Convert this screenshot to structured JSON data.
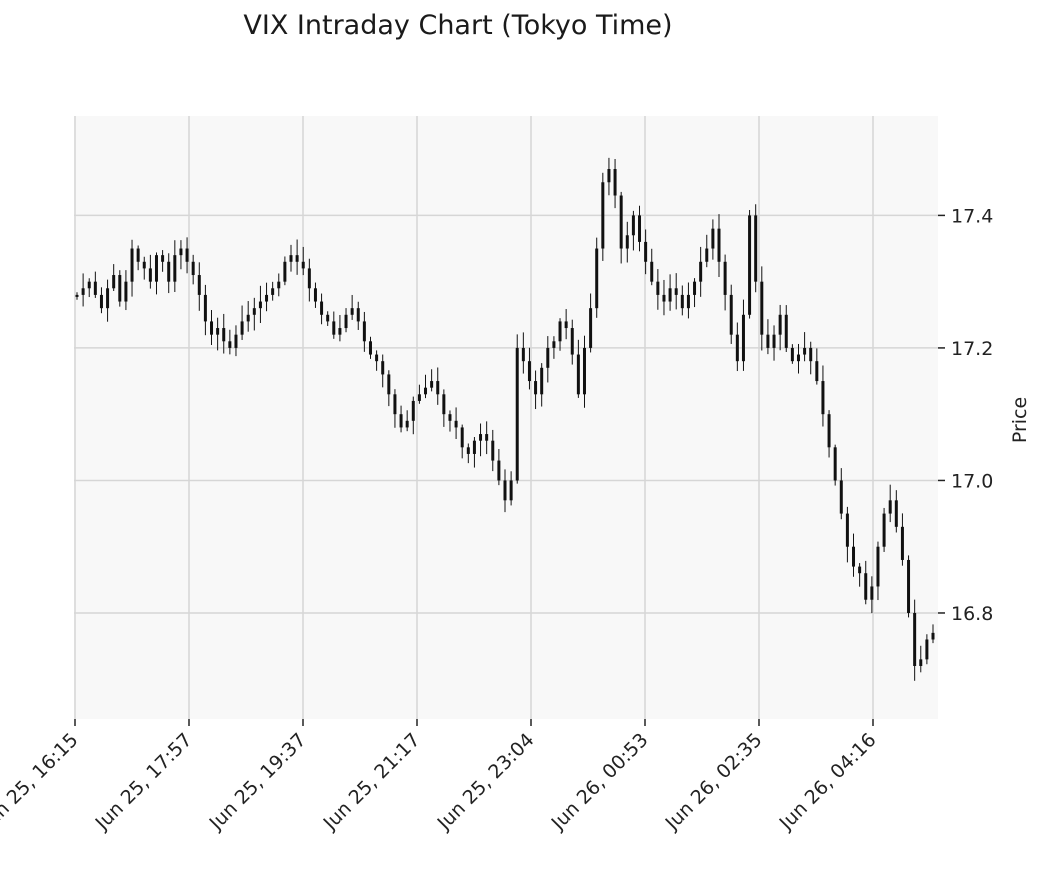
{
  "chart_data": {
    "type": "candlestick",
    "title": "VIX Intraday Chart (Tokyo Time)",
    "xlabel": "",
    "ylabel": "Price",
    "ylim": [
      16.64,
      17.55
    ],
    "y_ticks": [
      16.8,
      17.0,
      17.2,
      17.4
    ],
    "x_ticks": [
      "Jun 25, 16:15",
      "Jun 25, 17:57",
      "Jun 25, 19:37",
      "Jun 25, 21:17",
      "Jun 25, 23:04",
      "Jun 26, 00:53",
      "Jun 26, 02:35",
      "Jun 26, 04:16"
    ],
    "grid": true,
    "colors": {
      "plot_bg": "#f8f8f8",
      "grid": "#d6d6d6",
      "candle": "#111111"
    },
    "series": [
      {
        "values": [
          17.28,
          17.29,
          17.3,
          17.28,
          17.26,
          17.29,
          17.31,
          17.27,
          17.3,
          17.35,
          17.33,
          17.32,
          17.3,
          17.34,
          17.33,
          17.3,
          17.34,
          17.35,
          17.33,
          17.31,
          17.28,
          17.24,
          17.22,
          17.23,
          17.21,
          17.2,
          17.22,
          17.24,
          17.25,
          17.26,
          17.27,
          17.28,
          17.29,
          17.3,
          17.33,
          17.34,
          17.33,
          17.32,
          17.29,
          17.27,
          17.25,
          17.24,
          17.22,
          17.23,
          17.25,
          17.26,
          17.24,
          17.21,
          17.19,
          17.18,
          17.16,
          17.13,
          17.1,
          17.08,
          17.09,
          17.12,
          17.13,
          17.14,
          17.15,
          17.13,
          17.1,
          17.09,
          17.08,
          17.05,
          17.04,
          17.06,
          17.07,
          17.06,
          17.03,
          17.0,
          16.97,
          17.0,
          17.2,
          17.18,
          17.15,
          17.13,
          17.17,
          17.2,
          17.21,
          17.24,
          17.23,
          17.19,
          17.13,
          17.2,
          17.26,
          17.35,
          17.45,
          17.47,
          17.43,
          17.35,
          17.37,
          17.4,
          17.36,
          17.33,
          17.3,
          17.28,
          17.27,
          17.29,
          17.28,
          17.26,
          17.28,
          17.3,
          17.33,
          17.35,
          17.38,
          17.33,
          17.28,
          17.22,
          17.18,
          17.25,
          17.4,
          17.3,
          17.22,
          17.2,
          17.22,
          17.25,
          17.2,
          17.18,
          17.19,
          17.2,
          17.18,
          17.15,
          17.1,
          17.05,
          17.0,
          16.95,
          16.9,
          16.87,
          16.86,
          16.82,
          16.84,
          16.9,
          16.95,
          16.97,
          16.93,
          16.88,
          16.8,
          16.72,
          16.73,
          16.76,
          16.77
        ]
      }
    ]
  }
}
